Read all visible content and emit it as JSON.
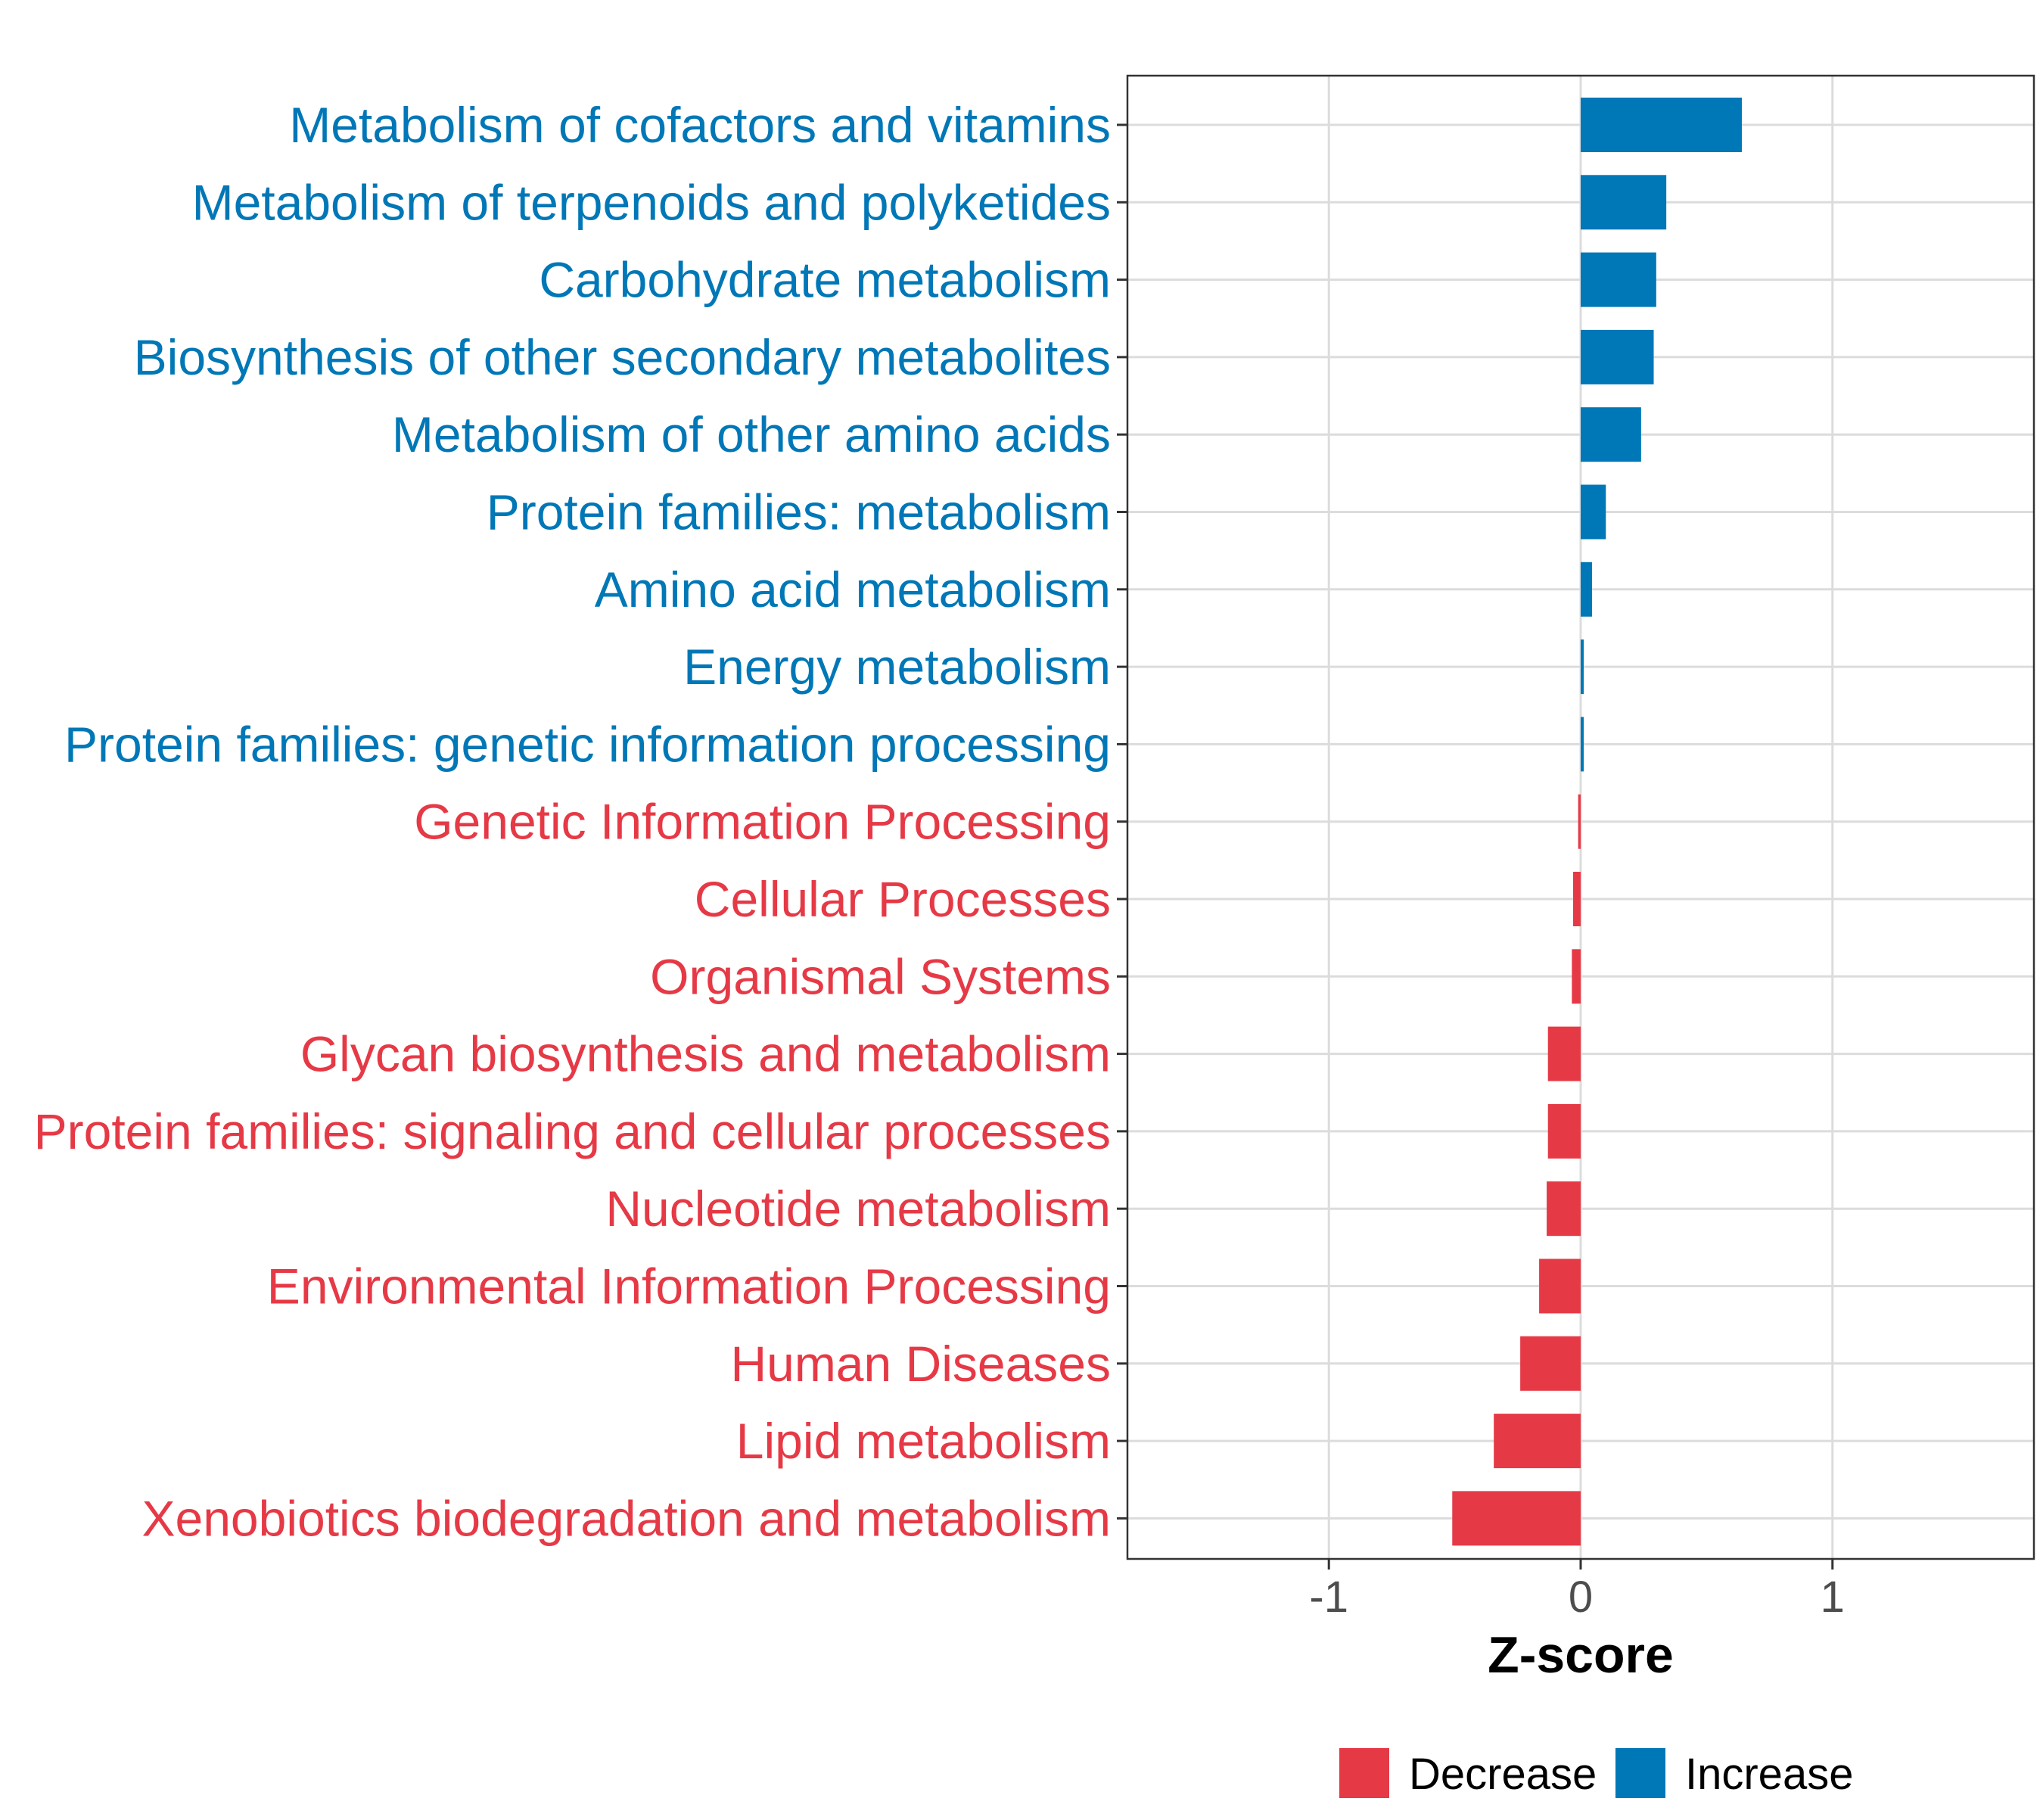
{
  "chart_data": {
    "type": "bar",
    "orientation": "horizontal",
    "categories": [
      "Metabolism of cofactors and vitamins",
      "Metabolism of terpenoids and polyketides",
      "Carbohydrate metabolism",
      "Biosynthesis of other secondary metabolites",
      "Metabolism of other amino acids",
      "Protein families: metabolism",
      "Amino acid metabolism",
      "Energy metabolism",
      "Protein families: genetic information processing",
      "Genetic Information Processing",
      "Cellular Processes",
      "Organismal Systems",
      "Glycan biosynthesis and metabolism",
      "Protein families: signaling and cellular processes",
      "Nucleotide metabolism",
      "Environmental Information Processing",
      "Human Diseases",
      "Lipid metabolism",
      "Xenobiotics biodegradation and metabolism"
    ],
    "values": [
      0.64,
      0.34,
      0.3,
      0.29,
      0.24,
      0.1,
      0.045,
      0.012,
      0.012,
      -0.01,
      -0.03,
      -0.035,
      -0.13,
      -0.13,
      -0.135,
      -0.165,
      -0.24,
      -0.345,
      -0.51
    ],
    "groups": [
      "Increase",
      "Increase",
      "Increase",
      "Increase",
      "Increase",
      "Increase",
      "Increase",
      "Increase",
      "Increase",
      "Decrease",
      "Decrease",
      "Decrease",
      "Decrease",
      "Decrease",
      "Decrease",
      "Decrease",
      "Decrease",
      "Decrease",
      "Decrease"
    ],
    "xlabel": "Z-score",
    "ylabel": "",
    "xlim": [
      -1.8,
      1.8
    ],
    "xticks": [
      -1,
      0,
      1
    ],
    "xtick_labels": [
      "-1",
      "0",
      "1"
    ],
    "grid": true,
    "legend": {
      "position": "bottom",
      "items": [
        {
          "label": "Decrease",
          "color": "#E63946"
        },
        {
          "label": "Increase",
          "color": "#0077B6"
        }
      ]
    },
    "colors": {
      "Decrease": "#E63946",
      "Increase": "#0077B6"
    }
  }
}
